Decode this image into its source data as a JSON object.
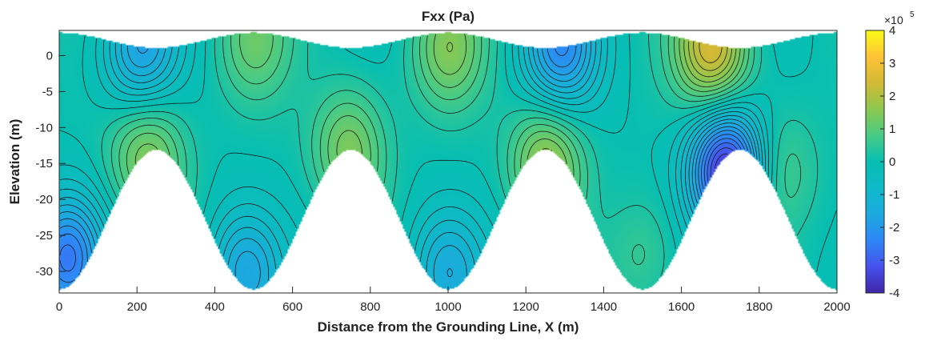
{
  "chart_data": {
    "type": "heatmap",
    "title": "Fxx (Pa)",
    "xlabel": "Distance from the Grounding Line, X (m)",
    "ylabel": "Elevation (m)",
    "xlim": [
      0,
      2000
    ],
    "ylim": [
      -33,
      3.5
    ],
    "x_ticks": [
      0,
      200,
      400,
      600,
      800,
      1000,
      1200,
      1400,
      1600,
      1800,
      2000
    ],
    "y_ticks": [
      0,
      -5,
      -10,
      -15,
      -20,
      -25,
      -30
    ],
    "colorbar": {
      "colormap": "parula",
      "multiplier": "×10",
      "exponent": "5",
      "limits": [
        -4,
        4
      ],
      "ticks": [
        4,
        3,
        2,
        1,
        0,
        -1,
        -2,
        -3,
        -4
      ]
    },
    "domain": {
      "top_surface": {
        "mean": 2.15,
        "amplitude": 1.05,
        "wavelength": 500,
        "peak_x": [
          0,
          500,
          1000,
          1500,
          2000
        ]
      },
      "bed_surface": {
        "mean": -22.8,
        "amplitude": 9.7,
        "wavelength": 500,
        "crest_x": [
          250,
          750,
          1250,
          1750
        ],
        "trough_x": [
          500,
          1000,
          1500,
          2000
        ]
      }
    },
    "field_features": [
      {
        "x": 1680,
        "y": 1,
        "value": 2.5
      },
      {
        "x": 1720,
        "y": -16,
        "value": -3.8
      },
      {
        "x": 210,
        "y": 1,
        "value": -1.8
      },
      {
        "x": 1290,
        "y": 1,
        "value": -2.2
      },
      {
        "x": 220,
        "y": -14,
        "value": 1.4
      },
      {
        "x": 740,
        "y": -13,
        "value": 1.3
      },
      {
        "x": 1250,
        "y": -15,
        "value": 1.6
      },
      {
        "x": 500,
        "y": 2,
        "value": 1.1
      },
      {
        "x": 1000,
        "y": 1,
        "value": 1.4
      },
      {
        "x": 480,
        "y": -30,
        "value": -1.6
      },
      {
        "x": 1000,
        "y": -30,
        "value": -1.4
      },
      {
        "x": 1500,
        "y": -28,
        "value": 0.6
      },
      {
        "x": 1850,
        "y": -16,
        "value": 0.8
      },
      {
        "x": 20,
        "y": -28,
        "value": -2.5
      }
    ],
    "contour_interval": 0.25
  }
}
